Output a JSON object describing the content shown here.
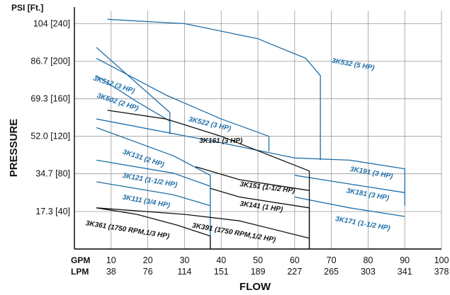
{
  "chart_data": {
    "type": "line",
    "title": "",
    "xlabel": "FLOW",
    "ylabel": "PRESSURE",
    "y_unit_label": "PSI [Ft.]",
    "x_row1_label": "GPM",
    "x_row2_label": "LPM",
    "xlim": [
      0,
      100
    ],
    "ylim": [
      0,
      110
    ],
    "grid": true,
    "x_ticks": [
      {
        "gpm": 10,
        "gpm_label": "10",
        "lpm_label": "38"
      },
      {
        "gpm": 20,
        "gpm_label": "20",
        "lpm_label": "76"
      },
      {
        "gpm": 30,
        "gpm_label": "30",
        "lpm_label": "114"
      },
      {
        "gpm": 40,
        "gpm_label": "40",
        "lpm_label": "151"
      },
      {
        "gpm": 50,
        "gpm_label": "50",
        "lpm_label": "189"
      },
      {
        "gpm": 60,
        "gpm_label": "60",
        "lpm_label": "227"
      },
      {
        "gpm": 70,
        "gpm_label": "70",
        "lpm_label": "265"
      },
      {
        "gpm": 80,
        "gpm_label": "80",
        "lpm_label": "303"
      },
      {
        "gpm": 90,
        "gpm_label": "90",
        "lpm_label": "341"
      },
      {
        "gpm": 100,
        "gpm_label": "100",
        "lpm_label": "378"
      }
    ],
    "y_ticks": [
      {
        "psi": 17.3,
        "label": "17.3 [40]"
      },
      {
        "psi": 34.7,
        "label": "34.7 [80]"
      },
      {
        "psi": 52.0,
        "label": "52.0 [120]"
      },
      {
        "psi": 69.3,
        "label": "69.3 [160]"
      },
      {
        "psi": 86.7,
        "label": "86.7 [200]"
      },
      {
        "psi": 104,
        "label": "104 [240]"
      }
    ],
    "series": [
      {
        "name": "3K532 (5 HP)",
        "color": "#1f6fa8",
        "points": [
          [
            9,
            106
          ],
          [
            30,
            104
          ],
          [
            50,
            97
          ],
          [
            63,
            88
          ],
          [
            67,
            80
          ],
          [
            67,
            41
          ]
        ],
        "label_at": [
          70,
          86
        ],
        "label_rot": 10
      },
      {
        "name": "3K512 (3 HP)",
        "color": "#1f6fa8",
        "points": [
          [
            6,
            93
          ],
          [
            26,
            63
          ],
          [
            26,
            53
          ]
        ],
        "label_at": [
          5,
          78
        ],
        "label_rot": 18
      },
      {
        "name": "3K502 (2 HP)",
        "color": "#1f6fa8",
        "points": [
          [
            6,
            80
          ],
          [
            17,
            68
          ],
          [
            26,
            59
          ],
          [
            26,
            53
          ]
        ],
        "label_at": [
          6,
          70
        ],
        "label_rot": 18
      },
      {
        "name": "3K522 (3 HP)",
        "color": "#1f6fa8",
        "points": [
          [
            6,
            88
          ],
          [
            25,
            71
          ],
          [
            40,
            60
          ],
          [
            53,
            52
          ],
          [
            53,
            45
          ]
        ],
        "label_at": [
          31,
          59
        ],
        "label_rot": 13
      },
      {
        "name": "3K191 (3 HP)",
        "color": "#1f6fa8",
        "points": [
          [
            6,
            60
          ],
          [
            40,
            49
          ],
          [
            60,
            42
          ],
          [
            75,
            41
          ],
          [
            90,
            37
          ],
          [
            90,
            20
          ]
        ],
        "label_at": [
          75,
          36
        ],
        "label_rot": 10
      },
      {
        "name": "3K131 (2 HP)",
        "color": "#1f6fa8",
        "points": [
          [
            6,
            56
          ],
          [
            27,
            43
          ],
          [
            37,
            34
          ],
          [
            37,
            0
          ]
        ],
        "label_at": [
          13,
          44
        ],
        "label_rot": 18
      },
      {
        "name": "3K121 (1-1/2 HP)",
        "color": "#1f6fa8",
        "points": [
          [
            6,
            41
          ],
          [
            27,
            35
          ],
          [
            37,
            29
          ]
        ],
        "label_at": [
          13,
          33
        ],
        "label_rot": 10
      },
      {
        "name": "3K111 (3/4 HP)",
        "color": "#1f6fa8",
        "points": [
          [
            6,
            31
          ],
          [
            27,
            25
          ],
          [
            37,
            20
          ]
        ],
        "label_at": [
          13,
          23
        ],
        "label_rot": 10
      },
      {
        "name": "3K181 (3 HP)",
        "color": "#1f6fa8",
        "points": [
          [
            60,
            34
          ],
          [
            75,
            30
          ],
          [
            90,
            26
          ]
        ],
        "label_at": [
          74,
          26
        ],
        "label_rot": 10
      },
      {
        "name": "3K171 (1-1/2 HP)",
        "color": "#1f6fa8",
        "points": [
          [
            60,
            24
          ],
          [
            75,
            19
          ],
          [
            90,
            15
          ]
        ],
        "label_at": [
          71,
          13
        ],
        "label_rot": 10
      },
      {
        "name": "3K161 (3 HP)",
        "color": "#111111",
        "points": [
          [
            9,
            64
          ],
          [
            25,
            60
          ],
          [
            40,
            52
          ],
          [
            52,
            44
          ],
          [
            64,
            36
          ],
          [
            64,
            0
          ]
        ],
        "label_at": [
          34,
          49
        ],
        "label_rot": 0
      },
      {
        "name": "3K151 (1-1/2 HP)",
        "color": "#111111",
        "points": [
          [
            33,
            38
          ],
          [
            45,
            32
          ],
          [
            64,
            27
          ]
        ],
        "label_at": [
          45,
          29
        ],
        "label_rot": 7
      },
      {
        "name": "3K141 (1 HP)",
        "color": "#111111",
        "points": [
          [
            37,
            28
          ],
          [
            45,
            24
          ],
          [
            64,
            19
          ],
          [
            64,
            0
          ]
        ],
        "label_at": [
          45,
          20
        ],
        "label_rot": 8
      },
      {
        "name": "3K391 (1750 RPM,1/2 HP)",
        "color": "#111111",
        "points": [
          [
            6,
            19
          ],
          [
            30,
            16
          ],
          [
            45,
            13
          ],
          [
            64,
            5
          ]
        ],
        "label_at": [
          32,
          10
        ],
        "label_rot": 10
      },
      {
        "name": "3K361 (1750 RPM,1/3 HP)",
        "color": "#111111",
        "points": [
          [
            6,
            19
          ],
          [
            17,
            16
          ],
          [
            28,
            11
          ],
          [
            37,
            6
          ],
          [
            37,
            0
          ]
        ],
        "label_at": [
          3,
          11
        ],
        "label_rot": 9
      }
    ]
  }
}
